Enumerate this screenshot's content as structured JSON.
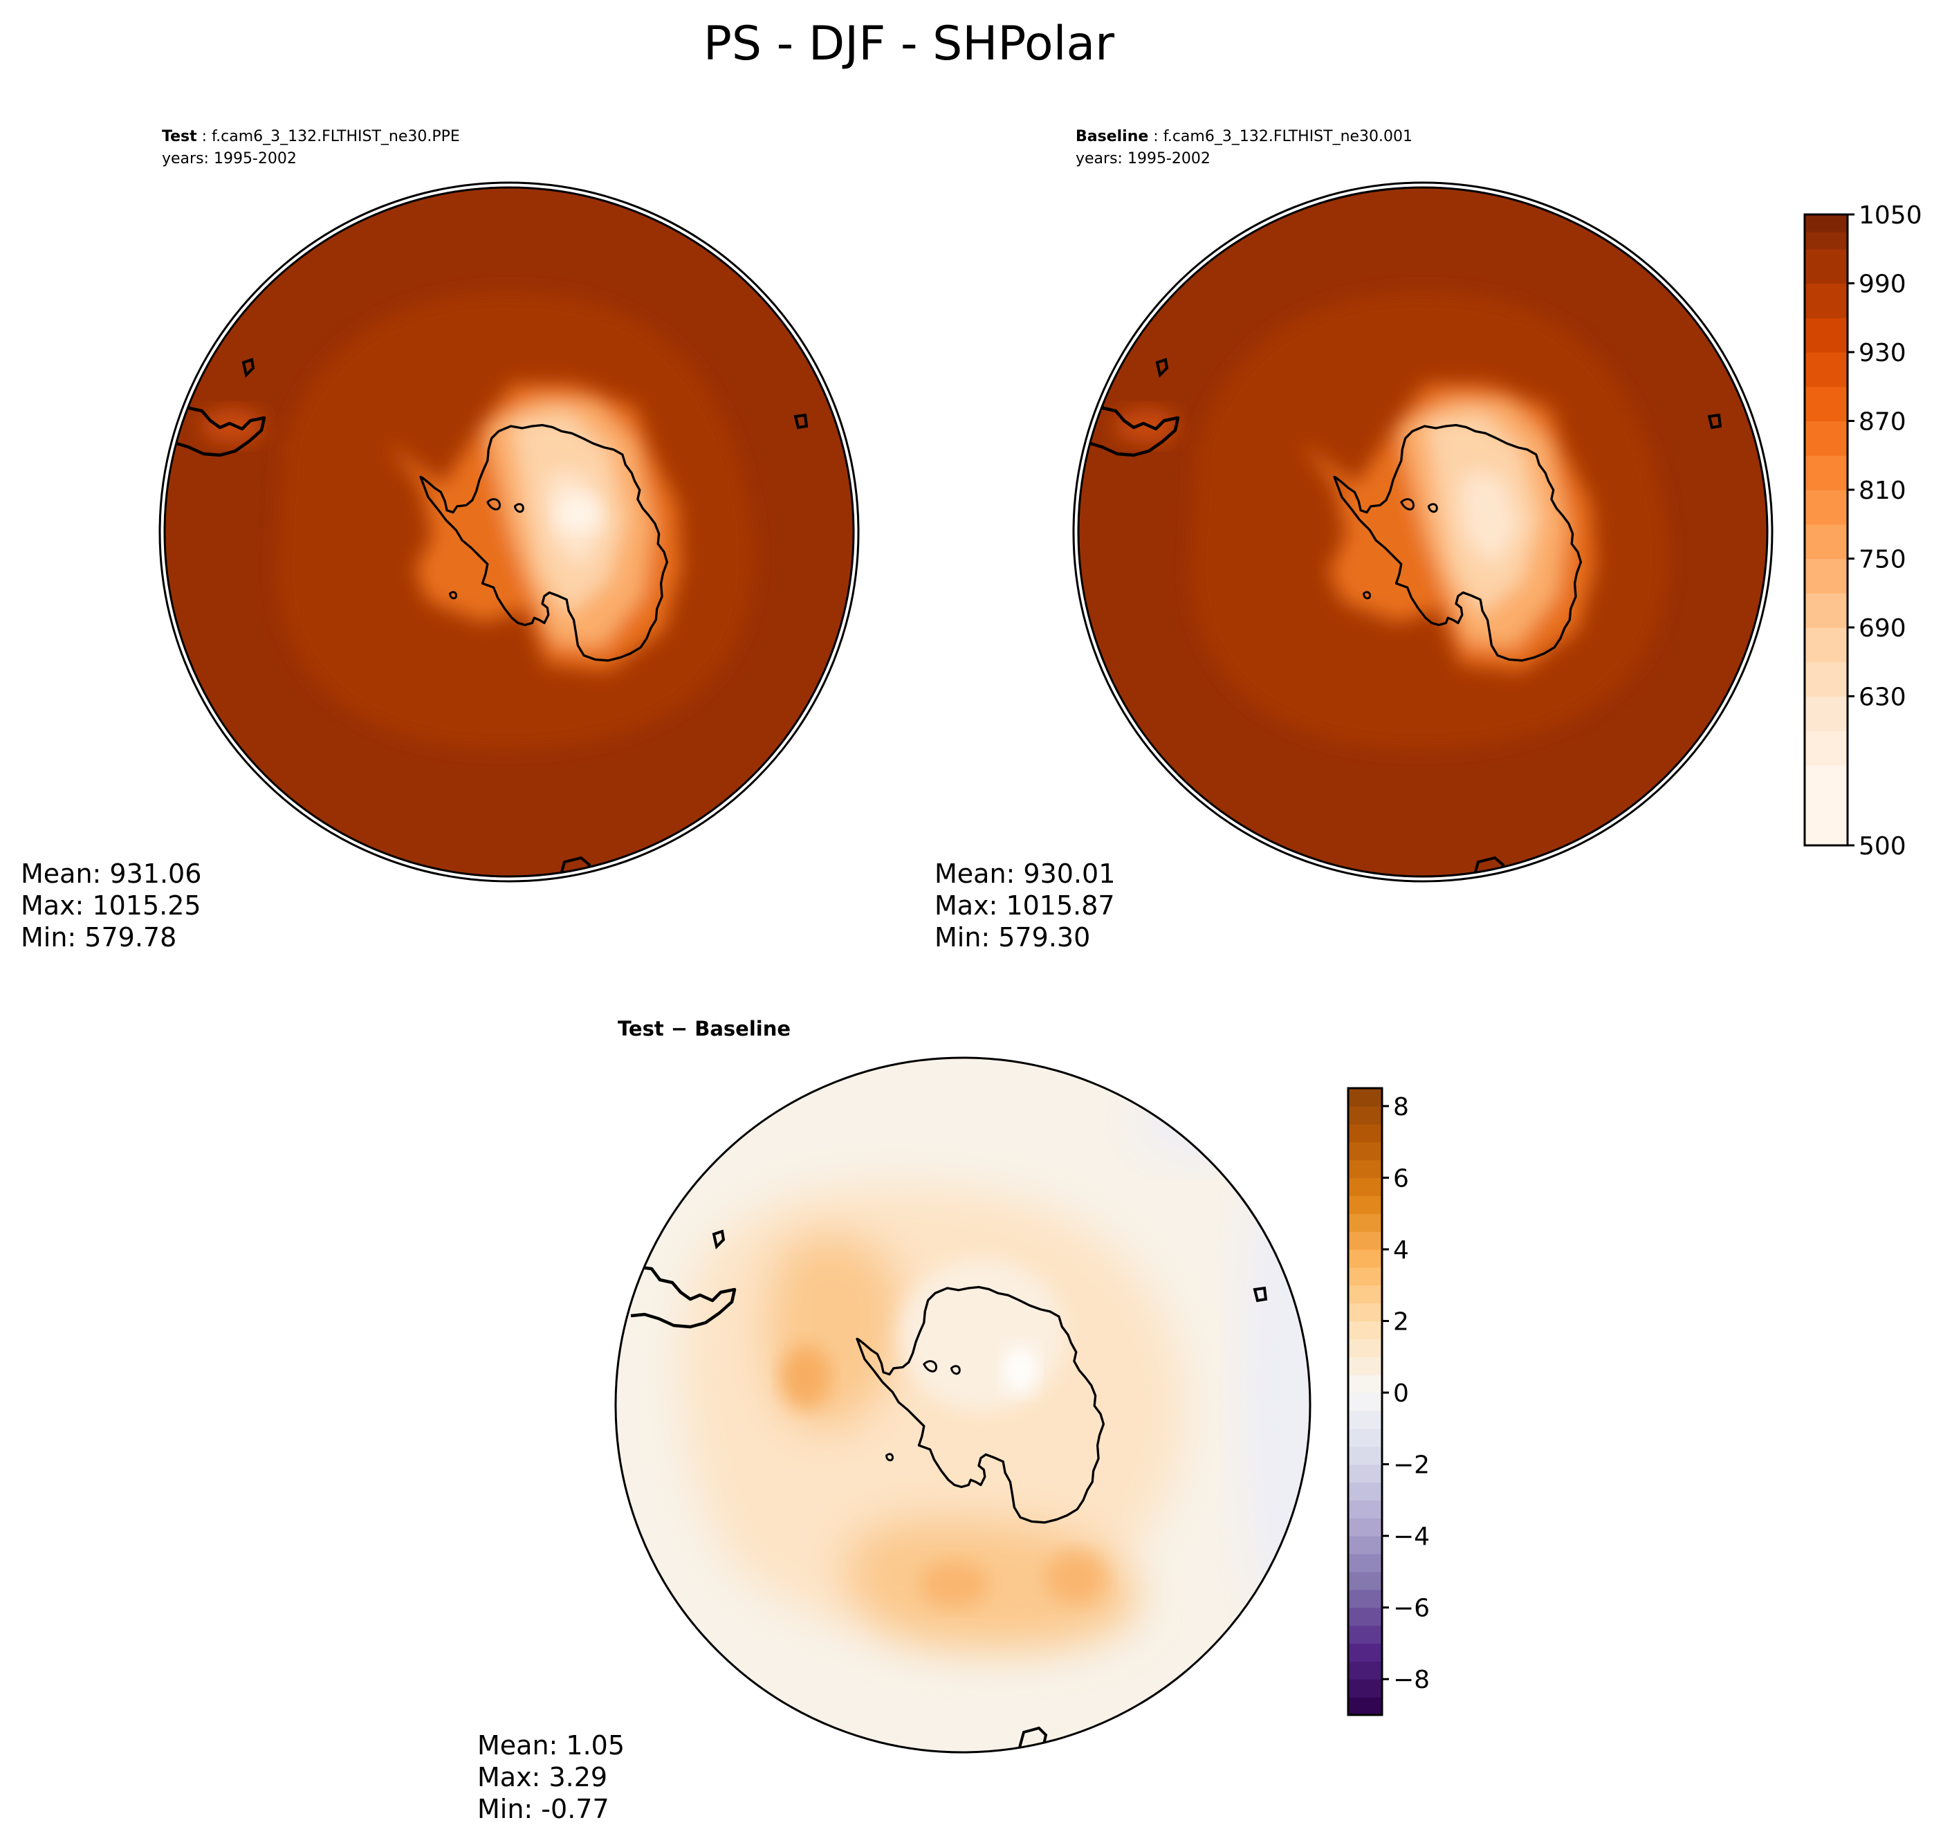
{
  "chart_data": {
    "type": "heatmap",
    "title": "PS - DJF - SHPolar",
    "colors": {
      "absolute_cmap": [
        "#fff5eb",
        "#fee6ce",
        "#fdd0a2",
        "#fdae6b",
        "#fd8d3c",
        "#f16913",
        "#d94801",
        "#a63603",
        "#7f2704"
      ],
      "diff_cmap": [
        "#2d004b",
        "#542788",
        "#8073ac",
        "#b2abd2",
        "#d8daeb",
        "#f7f7f7",
        "#fee0b6",
        "#fdb863",
        "#e08214",
        "#b35806",
        "#7f3b08"
      ]
    },
    "panels": [
      {
        "id": "test",
        "label": "Test",
        "case": ": f.cam6_3_132.FLTHIST_ne30.PPE",
        "years": "years: 1995-2002",
        "stats": {
          "mean": "Mean: 931.06",
          "max": "Max: 1015.25",
          "min": "Min: 579.78"
        },
        "values": {
          "mean": 931.06,
          "max": 1015.25,
          "min": 579.78
        }
      },
      {
        "id": "baseline",
        "label": "Baseline",
        "case": ": f.cam6_3_132.FLTHIST_ne30.001",
        "years": "years: 1995-2002",
        "stats": {
          "mean": "Mean: 930.01",
          "max": "Max: 1015.87",
          "min": "Min: 579.30"
        },
        "values": {
          "mean": 930.01,
          "max": 1015.87,
          "min": 579.3
        }
      },
      {
        "id": "diff",
        "label": "Test − Baseline",
        "stats": {
          "mean": "Mean:  1.05",
          "max": "Max:  3.29",
          "min": "Min: -0.77"
        },
        "values": {
          "mean": 1.05,
          "max": 3.29,
          "min": -0.77
        }
      }
    ],
    "colorbar_abs": {
      "range": [
        500,
        1050
      ],
      "levels": [
        500,
        570,
        600,
        630,
        660,
        690,
        720,
        750,
        780,
        810,
        840,
        870,
        900,
        930,
        960,
        990,
        1020,
        1035,
        1050
      ],
      "ticks": [
        500,
        630,
        690,
        750,
        810,
        870,
        930,
        990,
        1050
      ],
      "tick_labels": [
        "500",
        "630",
        "690",
        "750",
        "810",
        "870",
        "930",
        "990",
        "1050"
      ]
    },
    "colorbar_diff": {
      "range": [
        -9,
        8.5
      ],
      "ticks": [
        -8,
        -6,
        -4,
        -2,
        0,
        2,
        4,
        6,
        8
      ],
      "tick_labels": [
        "−8",
        "−6",
        "−4",
        "−2",
        "0",
        "2",
        "4",
        "6",
        "8"
      ]
    }
  }
}
